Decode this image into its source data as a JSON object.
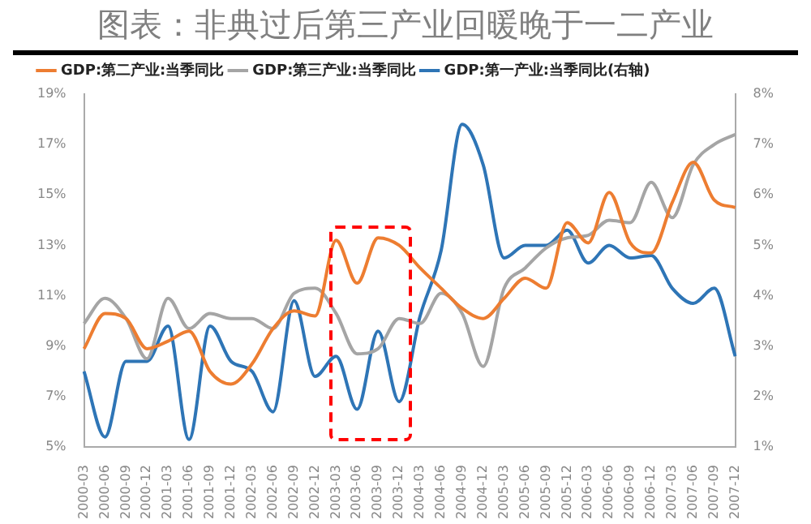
{
  "chart_data": {
    "type": "line",
    "title": "图表：非典过后第三产业回暖晚于一二产业",
    "categories": [
      "2000-03",
      "2000-06",
      "2000-09",
      "2000-12",
      "2001-03",
      "2001-06",
      "2001-09",
      "2001-12",
      "2002-03",
      "2002-06",
      "2002-09",
      "2002-12",
      "2003-03",
      "2003-06",
      "2003-09",
      "2003-12",
      "2004-03",
      "2004-06",
      "2004-09",
      "2004-12",
      "2005-03",
      "2005-06",
      "2005-09",
      "2005-12",
      "2006-03",
      "2006-06",
      "2006-09",
      "2006-12",
      "2007-03",
      "2007-06",
      "2007-09",
      "2007-12"
    ],
    "series": [
      {
        "name": "GDP:第二产业:当季同比",
        "color": "#ed7d31",
        "values": [
          8.9,
          10.3,
          10.1,
          8.9,
          9.2,
          9.6,
          8.0,
          7.5,
          8.3,
          9.7,
          10.4,
          10.2,
          13.2,
          11.5,
          13.3,
          13.0,
          12.1,
          11.3,
          10.5,
          10.1,
          10.9,
          11.7,
          11.3,
          13.9,
          13.1,
          15.1,
          13.1,
          12.7,
          14.7,
          16.3,
          14.8,
          14.5
        ]
      },
      {
        "name": "GDP:第三产业:当季同比",
        "color": "#a5a5a5",
        "values": [
          9.9,
          10.9,
          10.1,
          8.5,
          10.9,
          9.7,
          10.3,
          10.1,
          10.1,
          9.7,
          11.1,
          11.3,
          10.3,
          8.7,
          8.9,
          10.1,
          9.9,
          11.1,
          10.3,
          8.2,
          11.3,
          12.1,
          12.9,
          13.3,
          13.4,
          14.0,
          13.9,
          15.5,
          14.1,
          16.2,
          17.0,
          17.4
        ]
      },
      {
        "name": "GDP:第一产业:当季同比(右轴)",
        "color": "#2e75b6",
        "axis": "y2",
        "values": [
          2.5,
          1.2,
          2.7,
          2.7,
          3.4,
          1.15,
          3.4,
          2.7,
          2.5,
          1.7,
          3.9,
          2.4,
          2.8,
          1.75,
          3.3,
          1.9,
          3.6,
          4.9,
          7.4,
          6.6,
          4.75,
          5.0,
          5.0,
          5.3,
          4.65,
          5.0,
          4.75,
          4.8,
          4.15,
          3.85,
          4.15,
          2.8
        ]
      }
    ],
    "ylim": [
      5,
      19
    ],
    "yticks": [
      {
        "value": 5,
        "label": "5%"
      },
      {
        "value": 7,
        "label": "7%"
      },
      {
        "value": 9,
        "label": "9%"
      },
      {
        "value": 11,
        "label": "11%"
      },
      {
        "value": 13,
        "label": "13%"
      },
      {
        "value": 15,
        "label": "15%"
      },
      {
        "value": 17,
        "label": "17%"
      },
      {
        "value": 19,
        "label": "19%"
      }
    ],
    "y2lim": [
      1,
      8
    ],
    "y2ticks": [
      {
        "value": 1,
        "label": "1%"
      },
      {
        "value": 2,
        "label": "2%"
      },
      {
        "value": 3,
        "label": "3%"
      },
      {
        "value": 4,
        "label": "4%"
      },
      {
        "value": 5,
        "label": "5%"
      },
      {
        "value": 6,
        "label": "6%"
      },
      {
        "value": 7,
        "label": "7%"
      },
      {
        "value": 8,
        "label": "8%"
      }
    ],
    "grid": false,
    "legend": "top",
    "marker": "none",
    "line_style": "solid"
  }
}
